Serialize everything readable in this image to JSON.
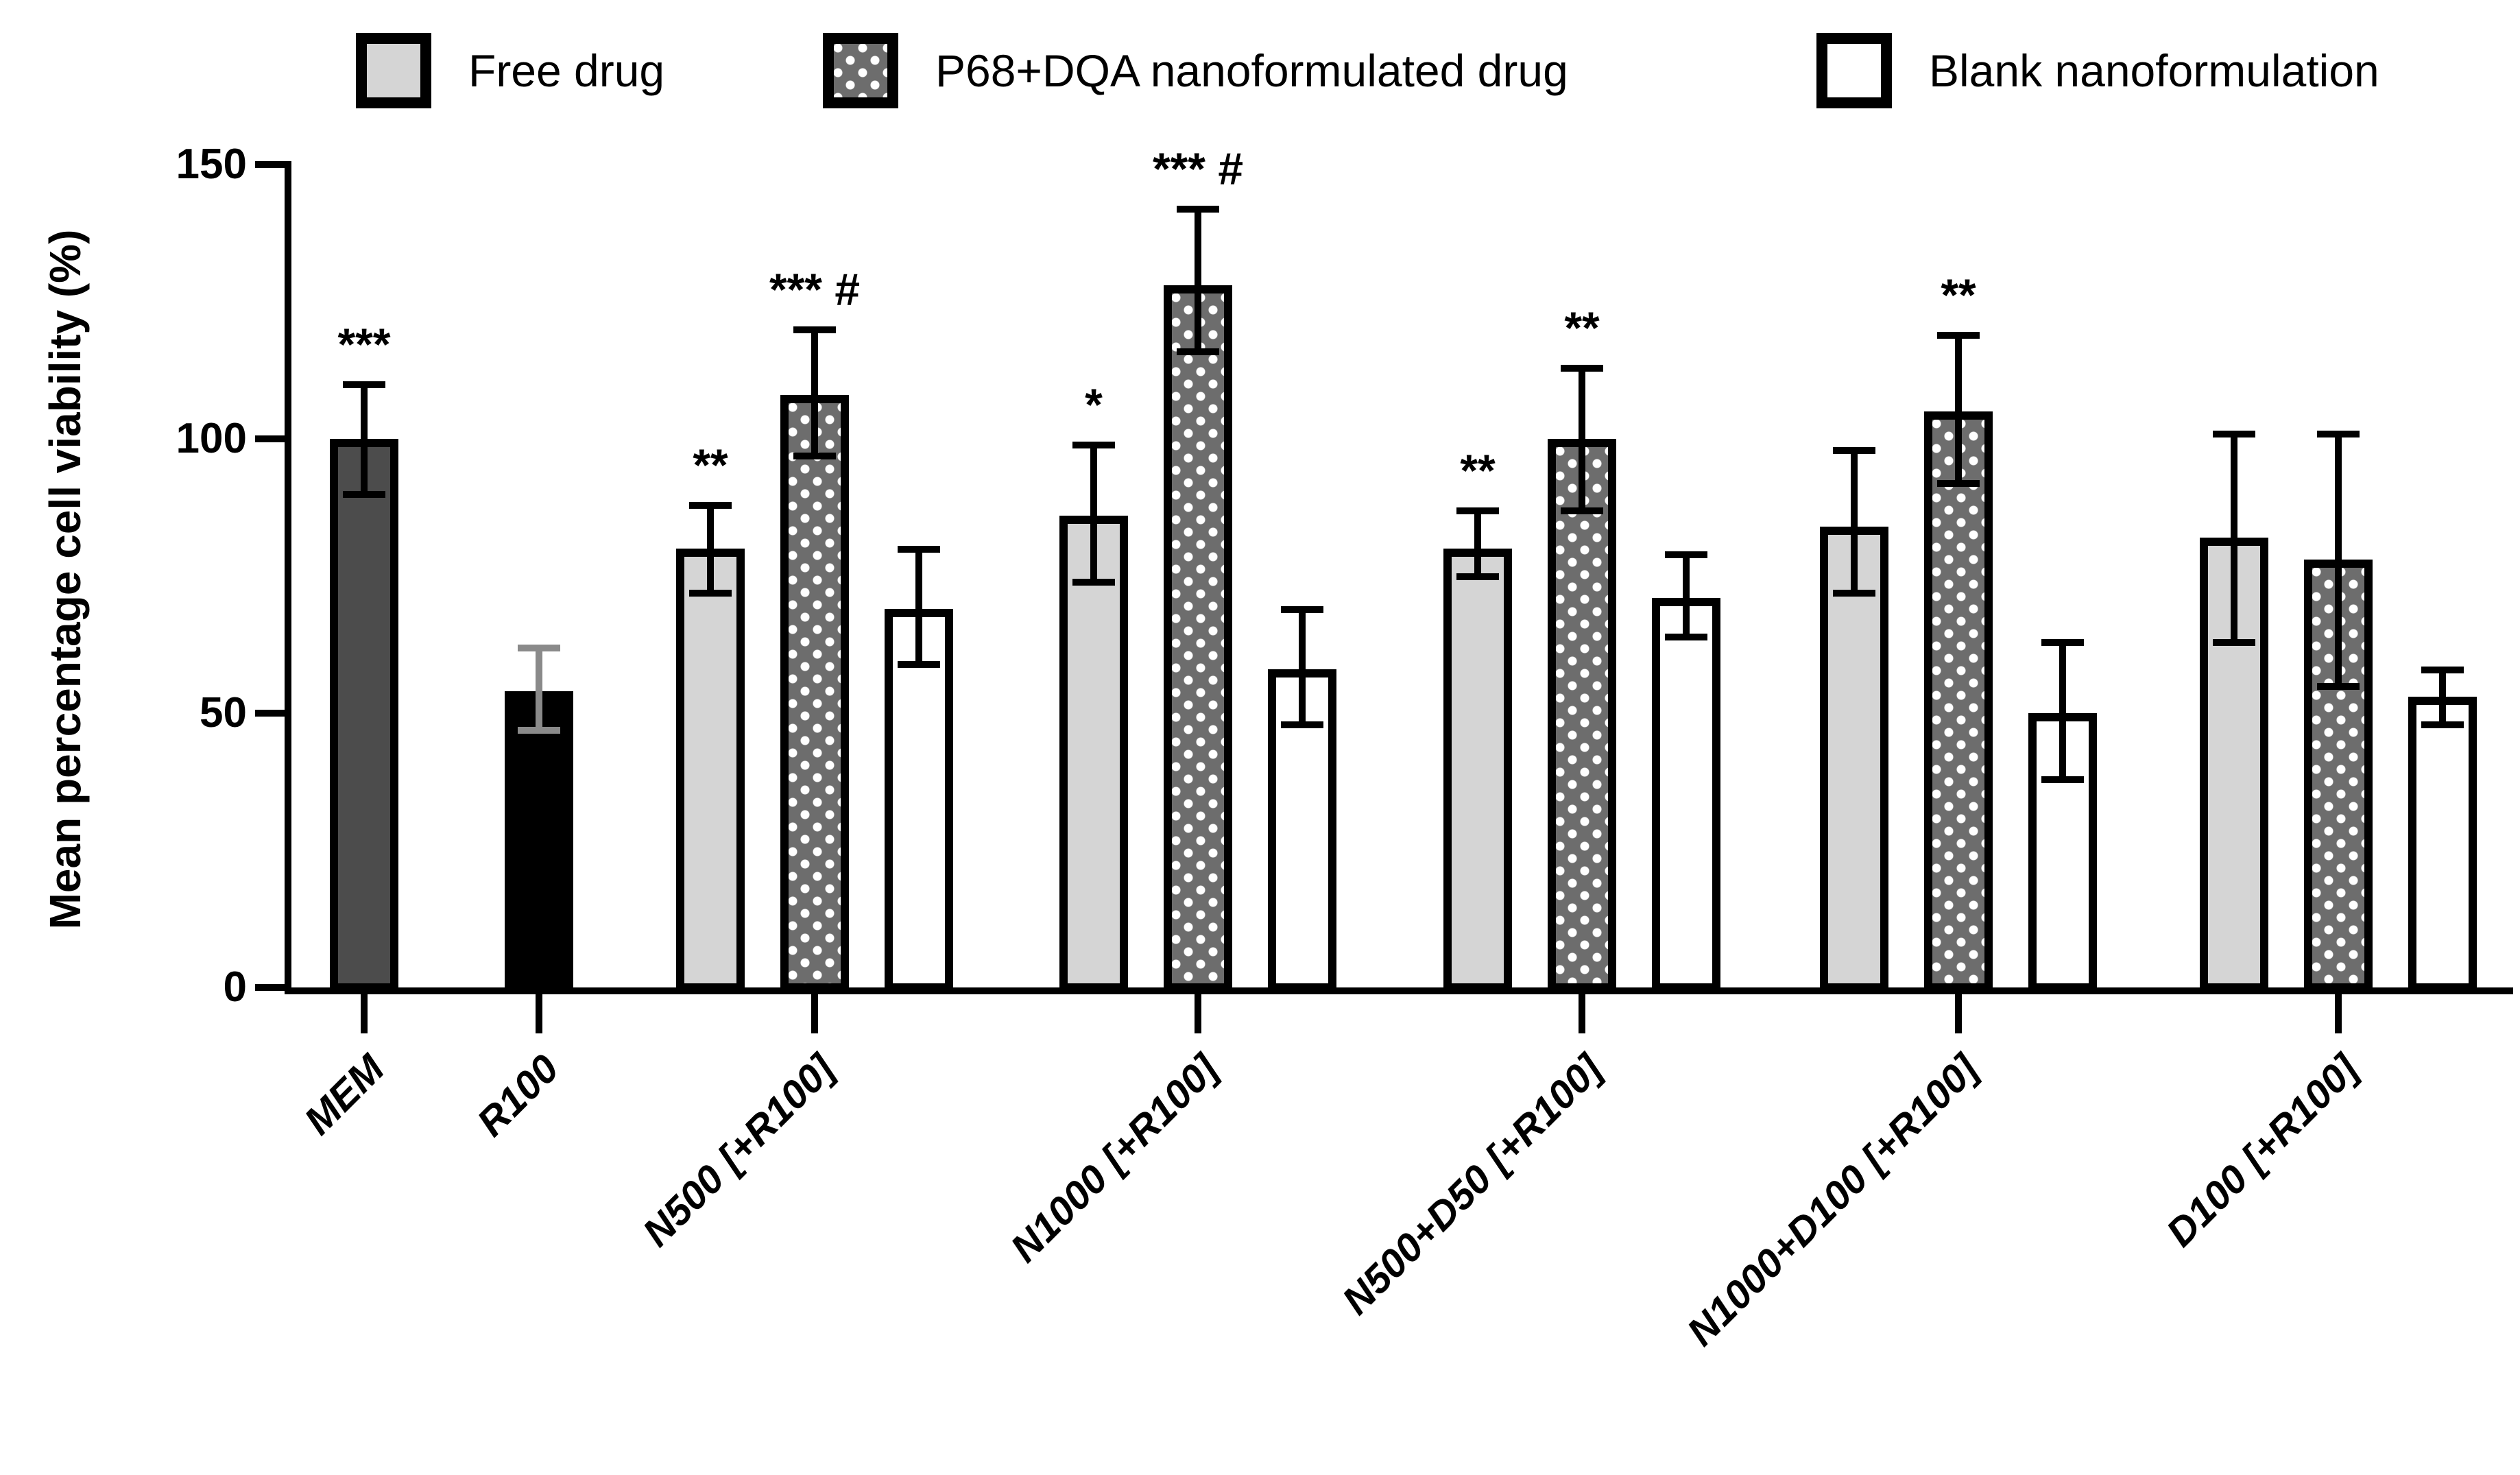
{
  "chart_data": {
    "type": "bar",
    "title": "",
    "ylabel": "Mean percentage cell viability (%)",
    "xlabel": "",
    "ylim": [
      0,
      150
    ],
    "yticks": [
      0,
      50,
      100,
      150
    ],
    "grid": false,
    "legend_position": "top",
    "legend": [
      {
        "label": "Free drug",
        "swatch": "free"
      },
      {
        "label": "P68+DQA nanoformulated drug",
        "swatch": "nano"
      },
      {
        "label": "Blank nanoformulation",
        "swatch": "blank"
      }
    ],
    "significance_symbols": [
      "*",
      "**",
      "***",
      "#"
    ],
    "groups": [
      {
        "label": "MEM",
        "bars": [
          {
            "series": "mem",
            "value": 100,
            "err_low": 90,
            "err_high": 110,
            "sig": "***"
          }
        ]
      },
      {
        "label": "R100",
        "bars": [
          {
            "series": "r100",
            "value": 54,
            "err_low": 47,
            "err_high": 62,
            "sig": ""
          }
        ]
      },
      {
        "label": "N500 [+R100]",
        "bars": [
          {
            "series": "free",
            "value": 80,
            "err_low": 72,
            "err_high": 88,
            "sig": "**"
          },
          {
            "series": "nano",
            "value": 108,
            "err_low": 97,
            "err_high": 120,
            "sig": "*** #"
          },
          {
            "series": "blank",
            "value": 69,
            "err_low": 59,
            "err_high": 80,
            "sig": ""
          }
        ]
      },
      {
        "label": "N1000 [+R100]",
        "bars": [
          {
            "series": "free",
            "value": 86,
            "err_low": 74,
            "err_high": 99,
            "sig": "*"
          },
          {
            "series": "nano",
            "value": 128,
            "err_low": 116,
            "err_high": 142,
            "sig": "*** #"
          },
          {
            "series": "blank",
            "value": 58,
            "err_low": 48,
            "err_high": 69,
            "sig": ""
          }
        ]
      },
      {
        "label": "N500+D50 [+R100]",
        "bars": [
          {
            "series": "free",
            "value": 80,
            "err_low": 75,
            "err_high": 87,
            "sig": "**"
          },
          {
            "series": "nano",
            "value": 100,
            "err_low": 87,
            "err_high": 113,
            "sig": "**"
          },
          {
            "series": "blank",
            "value": 71,
            "err_low": 64,
            "err_high": 79,
            "sig": ""
          }
        ]
      },
      {
        "label": "N1000+D100 [+R100]",
        "bars": [
          {
            "series": "free",
            "value": 84,
            "err_low": 72,
            "err_high": 98,
            "sig": ""
          },
          {
            "series": "nano",
            "value": 105,
            "err_low": 92,
            "err_high": 119,
            "sig": "**"
          },
          {
            "series": "blank",
            "value": 50,
            "err_low": 38,
            "err_high": 63,
            "sig": ""
          }
        ]
      },
      {
        "label": "D100 [+R100]",
        "bars": [
          {
            "series": "free",
            "value": 82,
            "err_low": 63,
            "err_high": 101,
            "sig": ""
          },
          {
            "series": "nano",
            "value": 78,
            "err_low": 55,
            "err_high": 101,
            "sig": ""
          },
          {
            "series": "blank",
            "value": 53,
            "err_low": 48,
            "err_high": 58,
            "sig": ""
          }
        ]
      }
    ],
    "colors": {
      "free": "#d5d5d5",
      "nano_base": "#6d6d6d",
      "nano_dots": "#ffffff",
      "blank": "#ffffff",
      "mem": "#4c4c4c",
      "r100": "#000000",
      "axis": "#000000",
      "error_default": "#000000",
      "error_r100": "#8a8a8a"
    }
  }
}
